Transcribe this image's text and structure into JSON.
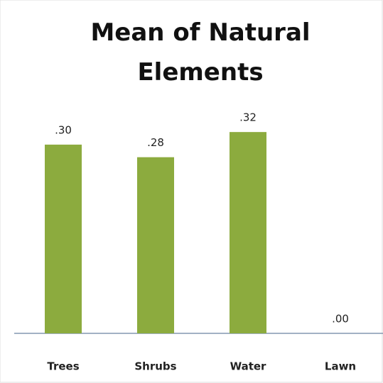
{
  "chart_data": {
    "type": "bar",
    "title": "Mean of Natural Elements",
    "categories": [
      "Trees",
      "Shrubs",
      "Water",
      "Lawn"
    ],
    "values": [
      0.3,
      0.28,
      0.32,
      0.0
    ],
    "value_labels": [
      ".30",
      ".28",
      ".32",
      ".00"
    ],
    "color": "#8cab3e"
  }
}
